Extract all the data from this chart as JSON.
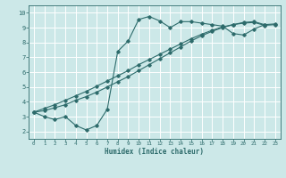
{
  "xlabel": "Humidex (Indice chaleur)",
  "background_color": "#cce8e8",
  "grid_color": "#ffffff",
  "line_color": "#2d6b6b",
  "xlim": [
    -0.5,
    23.5
  ],
  "ylim": [
    1.5,
    10.5
  ],
  "xticks": [
    0,
    1,
    2,
    3,
    4,
    5,
    6,
    7,
    8,
    9,
    10,
    11,
    12,
    13,
    14,
    15,
    16,
    17,
    18,
    19,
    20,
    21,
    22,
    23
  ],
  "yticks": [
    2,
    3,
    4,
    5,
    6,
    7,
    8,
    9,
    10
  ],
  "line1_x": [
    0,
    1,
    2,
    3,
    4,
    5,
    6,
    7,
    8,
    9,
    10,
    11,
    12,
    13,
    14,
    15,
    16,
    17,
    18,
    19,
    20,
    21,
    22
  ],
  "line1_y": [
    3.3,
    3.0,
    2.8,
    3.0,
    2.4,
    2.1,
    2.4,
    3.5,
    7.4,
    8.1,
    9.55,
    9.75,
    9.45,
    9.0,
    9.4,
    9.4,
    9.3,
    9.2,
    9.1,
    8.6,
    8.5,
    8.9,
    9.2
  ],
  "line2_x": [
    0,
    1,
    2,
    3,
    4,
    5,
    6,
    7,
    8,
    9,
    10,
    11,
    12,
    13,
    14,
    15,
    16,
    17,
    18,
    19,
    20,
    21,
    22,
    23
  ],
  "line2_y": [
    3.3,
    3.4,
    3.6,
    3.8,
    4.1,
    4.35,
    4.65,
    5.0,
    5.35,
    5.7,
    6.1,
    6.5,
    6.9,
    7.3,
    7.7,
    8.1,
    8.45,
    8.75,
    9.0,
    9.2,
    9.35,
    9.4,
    9.2,
    9.25
  ],
  "line3_x": [
    0,
    1,
    2,
    3,
    4,
    5,
    6,
    7,
    8,
    9,
    10,
    11,
    12,
    13,
    14,
    15,
    16,
    17,
    18,
    19,
    20,
    21,
    22,
    23
  ],
  "line3_y": [
    3.3,
    3.55,
    3.8,
    4.1,
    4.4,
    4.7,
    5.05,
    5.4,
    5.75,
    6.1,
    6.5,
    6.85,
    7.2,
    7.55,
    7.9,
    8.25,
    8.55,
    8.82,
    9.05,
    9.2,
    9.3,
    9.35,
    9.15,
    9.2
  ]
}
